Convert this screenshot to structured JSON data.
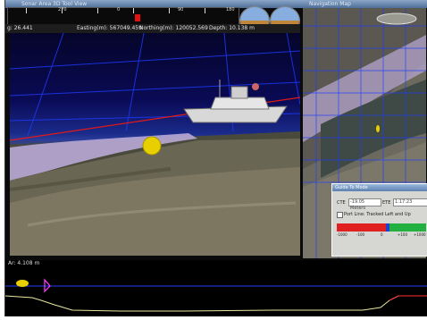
{
  "window": {
    "title": "Sonar Area 3D Tool View",
    "right_title": "Navigation Map"
  },
  "heading_scale": {
    "labels": [
      "270",
      "0",
      "90",
      "180"
    ],
    "marker_value": 0
  },
  "status": {
    "heading": "g: 26.441",
    "easting": "Easting(m): 567049.459",
    "northing": "Northing(m): 120052.569",
    "depth": "Depth: 10.138 m"
  },
  "bottom_strip": {
    "label": "Ar: 4.108 m"
  },
  "tool_panel": {
    "title": "Guide To Mode",
    "field1_label": "CTE",
    "field1_value": "-19.05 Meters",
    "field2_label": "ETE",
    "field2_value": "1:17:23",
    "checkbox_label": "Port Line: Tracked Left and Up",
    "scale_labels": [
      "-1000",
      "-100",
      "0",
      "+100",
      "+1000"
    ]
  },
  "colors": {
    "sky_top": "#05052a",
    "grid_line": "#1e3cff",
    "red_line": "#e01a1a",
    "terrain": "#5a5a48",
    "shore": "#c9b7e0",
    "yellow_marker": "#e8d000",
    "profile_line": "#e8e8a0",
    "profile_red": "#ff3030"
  },
  "icons": [
    "heading-marker-icon",
    "attitude-gauge-icon",
    "vehicle-marker-icon",
    "yellow-target-icon"
  ]
}
